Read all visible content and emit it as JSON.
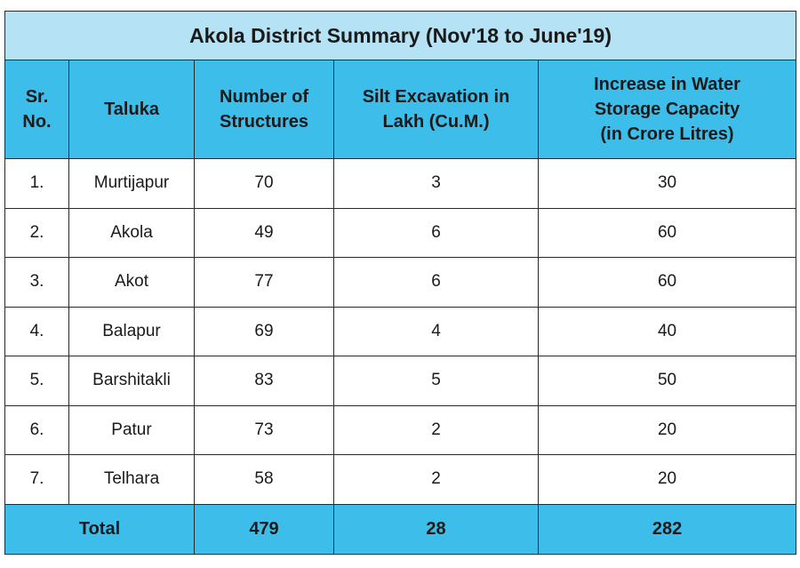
{
  "table": {
    "title": "Akola District Summary (Nov'18 to June'19)",
    "headers": [
      "Sr.\nNo.",
      "Taluka",
      "Number of\nStructures",
      "Silt Excavation in\nLakh (Cu.M.)",
      "Increase in Water\nStorage Capacity\n(in Crore Litres)"
    ],
    "rows": [
      [
        "1.",
        "Murtijapur",
        70,
        3,
        30
      ],
      [
        "2.",
        "Akola",
        49,
        6,
        60
      ],
      [
        "3.",
        "Akot",
        77,
        6,
        60
      ],
      [
        "4.",
        "Balapur",
        69,
        4,
        40
      ],
      [
        "5.",
        "Barshitakli",
        83,
        5,
        50
      ],
      [
        "6.",
        "Patur",
        73,
        2,
        20
      ],
      [
        "7.",
        "Telhara",
        58,
        2,
        20
      ]
    ],
    "total": [
      "Total",
      479,
      28,
      282
    ]
  }
}
